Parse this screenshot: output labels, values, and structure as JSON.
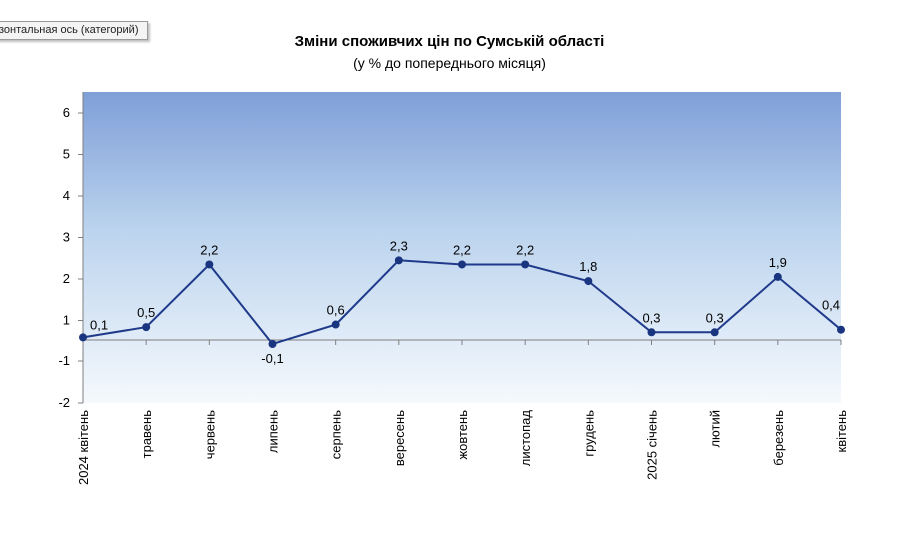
{
  "tooltip": "зонтальная ось (категорий)",
  "chart_data": {
    "type": "line",
    "title": "Зміни споживчих цін по Сумській області",
    "subtitle": "(у % до попереднього місяця)",
    "categories": [
      "2024 квітень",
      "травень",
      "червень",
      "липень",
      "серпень",
      "вересень",
      "жовтень",
      "листопад",
      "грудень",
      "2025 січень",
      "лютий",
      "березень",
      "квітень"
    ],
    "series": [
      {
        "values": [
          0.1,
          0.5,
          2.2,
          -0.1,
          0.6,
          2.3,
          2.2,
          2.2,
          1.8,
          0.3,
          0.3,
          1.9,
          0.4
        ],
        "labels": [
          "0,1",
          "0,5",
          "2,2",
          "-0,1",
          "0,6",
          "2,3",
          "2,2",
          "2,2",
          "1,8",
          "0,3",
          "0,3",
          "1,9",
          "0,4"
        ]
      }
    ],
    "y_tick_labels": [
      "6",
      "5",
      "4",
      "3",
      "2",
      "1",
      "-1",
      "-2"
    ],
    "grid": false,
    "colors": {
      "line": "#1f3a8a",
      "marker": "#1a3580",
      "plot_top": "#7f9fd8",
      "plot_mid": "#bcd4ee",
      "plot_bottom": "#f5f9fd"
    }
  }
}
